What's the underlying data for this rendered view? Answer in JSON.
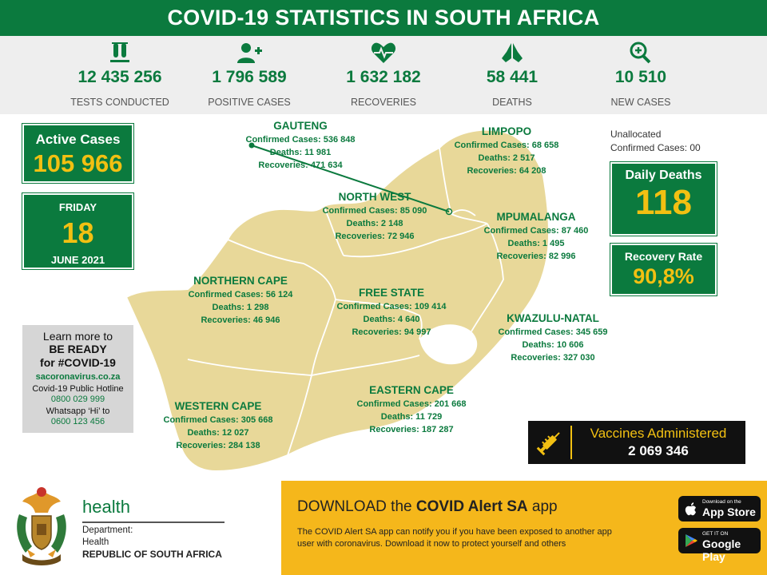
{
  "header": {
    "title": "COVID-19 STATISTICS IN SOUTH AFRICA"
  },
  "colors": {
    "brand_green": "#0b7a3e",
    "accent_yellow": "#f2c012",
    "map_fill": "#e8d899",
    "banner_yellow": "#f5b71b"
  },
  "stats": [
    {
      "icon": "test-tubes-icon",
      "value": "12 435 256",
      "label": "TESTS CONDUCTED"
    },
    {
      "icon": "add-person-icon",
      "value": "1  796 589",
      "label": "POSITIVE CASES"
    },
    {
      "icon": "heartbeat-icon",
      "value": "1 632 182",
      "label": "RECOVERIES"
    },
    {
      "icon": "praying-hands-icon",
      "value": "58 441",
      "label": "DEATHS"
    },
    {
      "icon": "magnifier-plus-icon",
      "value": "10 510",
      "label": "NEW CASES"
    }
  ],
  "active_cases": {
    "label": "Active Cases",
    "value": "105 966"
  },
  "date": {
    "weekday": "FRIDAY",
    "day": "18",
    "month_year": "JUNE 2021"
  },
  "learn_more": {
    "line1": "Learn more to",
    "line2": "BE READY",
    "line3": "for #COVID-19",
    "website": "sacoronavirus.co.za",
    "hotline_label": "Covid-19 Public Hotline",
    "hotline_number": "0800 029 999",
    "whatsapp_label": "Whatsapp ‘Hi’ to",
    "whatsapp_number": "0600 123 456"
  },
  "provinces": {
    "gauteng": {
      "name": "GAUTENG",
      "cases": "Confirmed Cases:  536 848",
      "deaths": "Deaths: 11 981",
      "recoveries": "Recoveries: 471 634"
    },
    "limpopo": {
      "name": "LIMPOPO",
      "cases": "Confirmed Cases: 68 658",
      "deaths": "Deaths: 2 517",
      "recoveries": "Recoveries: 64 208"
    },
    "north_west": {
      "name": "NORTH WEST",
      "cases": "Confirmed Cases: 85 090",
      "deaths": "Deaths: 2 148",
      "recoveries": "Recoveries: 72 946"
    },
    "mpumalanga": {
      "name": "MPUMALANGA",
      "cases": "Confirmed Cases: 87 460",
      "deaths": "Deaths:  1 495",
      "recoveries": "Recoveries: 82 996"
    },
    "northern_cape": {
      "name": "NORTHERN CAPE",
      "cases": "Confirmed Cases: 56 124",
      "deaths": "Deaths: 1 298",
      "recoveries": "Recoveries: 46 946"
    },
    "free_state": {
      "name": "FREE STATE",
      "cases": "Confirmed Cases: 109 414",
      "deaths": "Deaths: 4 640",
      "recoveries": "Recoveries:  94 997"
    },
    "kwazulu_natal": {
      "name": "KWAZULU-NATAL",
      "cases": "Confirmed Cases: 345 659",
      "deaths": "Deaths: 10 606",
      "recoveries": "Recoveries: 327 030"
    },
    "eastern_cape": {
      "name": "EASTERN CAPE",
      "cases": "Confirmed Cases: 201 668",
      "deaths": "Deaths: 11 729",
      "recoveries": "Recoveries: 187 287"
    },
    "western_cape": {
      "name": "WESTERN CAPE",
      "cases": "Confirmed Cases: 305 668",
      "deaths": "Deaths: 12 027",
      "recoveries": "Recoveries: 284 138"
    }
  },
  "unallocated": {
    "line1": "Unallocated",
    "line2": "Confirmed Cases: 00"
  },
  "daily_deaths": {
    "label": "Daily Deaths",
    "value": "118"
  },
  "recovery_rate": {
    "label": "Recovery Rate",
    "value": "90,8%"
  },
  "vaccines": {
    "label": "Vaccines Administered",
    "value": "2 069 346",
    "icon": "syringe-icon"
  },
  "department": {
    "wordmark": "health",
    "line1": "Department:",
    "line2": "Health",
    "line3": "REPUBLIC OF SOUTH AFRICA",
    "emblem": "coat-of-arms-icon"
  },
  "banner": {
    "heading_prefix": "DOWNLOAD the ",
    "heading_bold": "COVID Alert SA",
    "heading_suffix": " app",
    "body_line1": "The COVID Alert SA app can notify you if you have been exposed to another app",
    "body_line2": "user with coronavirus. Download it now to protect yourself and others",
    "app_store": {
      "small": "Download on the",
      "big": "App Store",
      "icon": "apple-icon"
    },
    "google_play": {
      "small": "GET IT ON",
      "big": "Google Play",
      "icon": "play-icon"
    }
  }
}
